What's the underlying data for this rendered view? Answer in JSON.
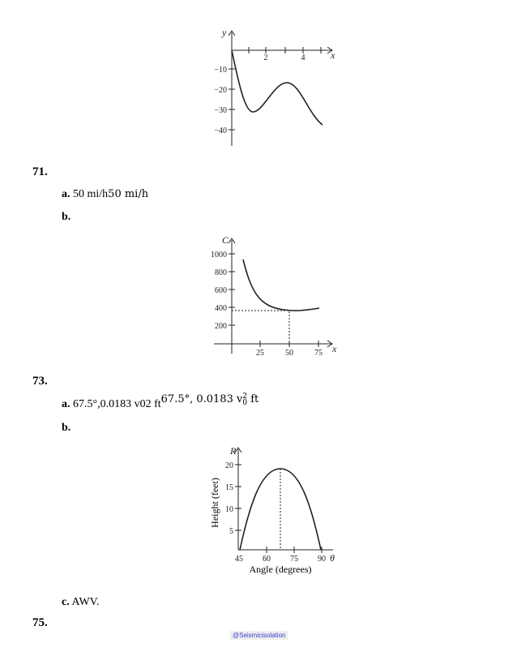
{
  "problems": {
    "p71": {
      "number": "71.",
      "a_letter": "a.",
      "a_text": "50 mi/h",
      "a_math": "50 mi/h",
      "b_letter": "b."
    },
    "p73": {
      "number": "73.",
      "a_letter": "a.",
      "a_text": "67.5°,0.0183 v02 ft",
      "a_math_1": "67.5°, 0.0183 v",
      "a_math_sub": "0",
      "a_math_sup": "2",
      "a_math_2": " ft",
      "b_letter": "b.",
      "c_letter": "c.",
      "c_text": "AWV."
    },
    "p75": {
      "number": "75."
    }
  },
  "graph1": {
    "y_var": "y",
    "x_var": "x",
    "x_ticks": [
      "2",
      "4"
    ],
    "y_ticks": [
      "−10",
      "−20",
      "−30",
      "−40"
    ]
  },
  "graph2": {
    "y_var": "C",
    "x_var": "x",
    "x_ticks": [
      "25",
      "50",
      "75"
    ],
    "y_ticks": [
      "1000",
      "800",
      "600",
      "400",
      "200"
    ]
  },
  "graph3": {
    "y_var": "R",
    "x_var": "θ",
    "x_label": "Angle (degrees)",
    "y_label": "Height (feet)",
    "x_ticks": [
      "45",
      "60",
      "75",
      "90"
    ],
    "y_ticks": [
      "20",
      "15",
      "10",
      "5"
    ]
  },
  "watermark": "@Seismicisolation"
}
